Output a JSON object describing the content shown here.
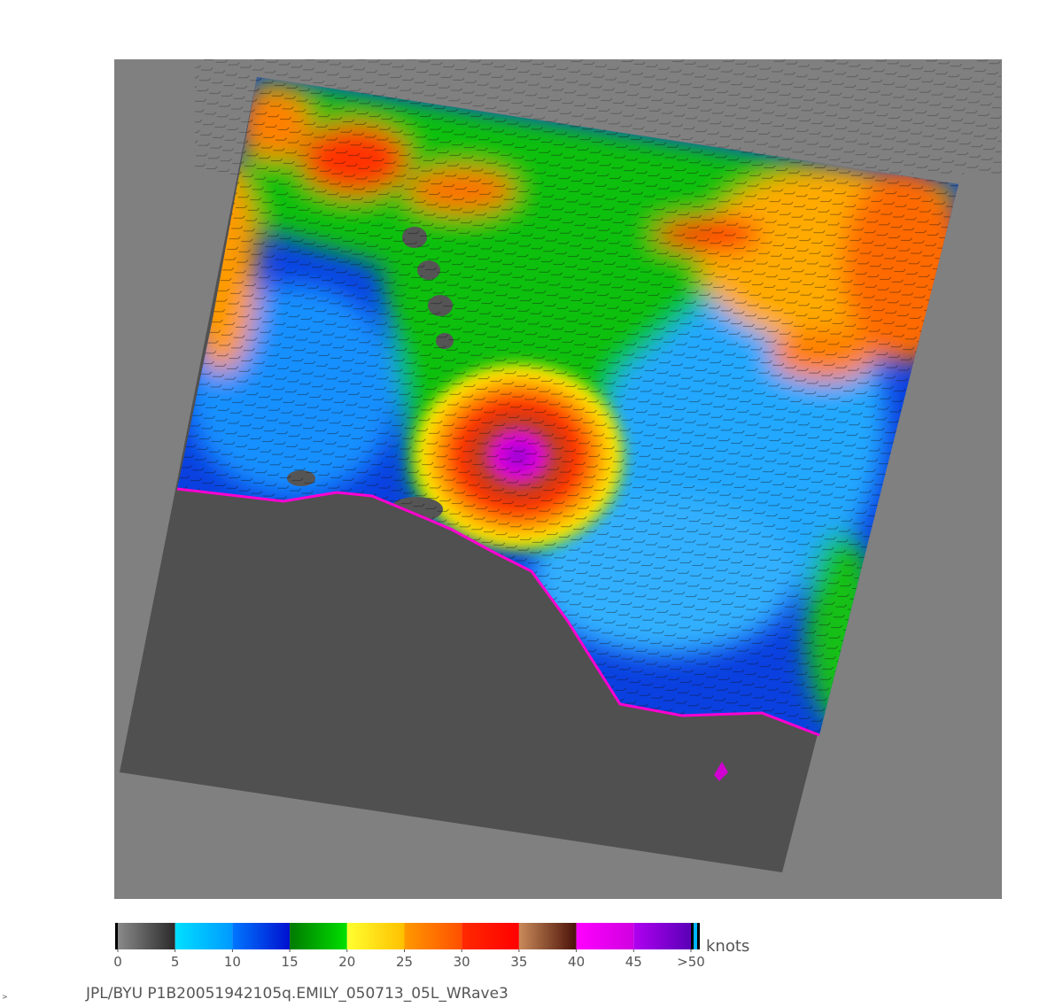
{
  "colorbar": {
    "unit": "knots",
    "lim": [
      0,
      50
    ],
    "ticks": [
      0,
      5,
      10,
      15,
      20,
      25,
      30,
      35,
      40,
      45,
      {
        "value": 50,
        "label": ">50"
      }
    ],
    "colors": [
      [
        "#8a8a8a",
        "#2a2a2a"
      ],
      [
        "#00e0ff",
        "#0099ff"
      ],
      [
        "#0077ff",
        "#0010d0"
      ],
      [
        "#007a00",
        "#00e000"
      ],
      [
        "#ffff30",
        "#ffc000"
      ],
      [
        "#ff9900",
        "#ff5000"
      ],
      [
        "#ff2a00",
        "#ff0000"
      ],
      [
        "#c98a5a",
        "#4a1208"
      ],
      [
        "#ff00ff",
        "#d000e0"
      ],
      [
        "#b000f0",
        "#5a00b8"
      ]
    ]
  },
  "footer": "JPL/BYU  P1B20051942105q.EMILY_050713_05L_WRave3",
  "corner_mark": ">"
}
